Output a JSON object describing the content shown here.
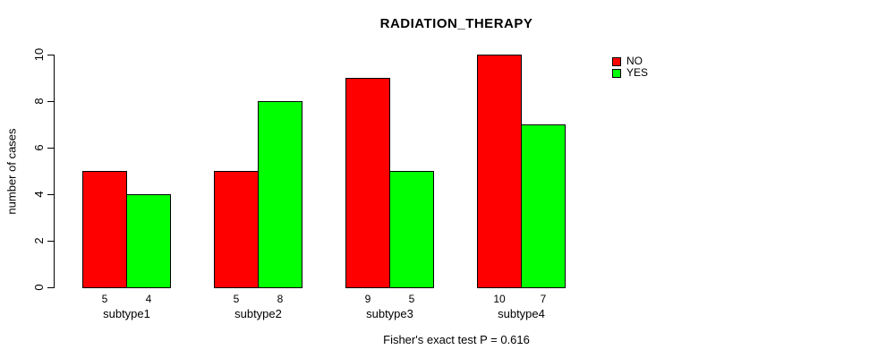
{
  "chart_data": {
    "type": "bar",
    "title": "RADIATION_THERAPY",
    "ylabel": "number of cases",
    "xlabel": "",
    "annotation": "Fisher's exact test P = 0.616",
    "categories": [
      "subtype1",
      "subtype2",
      "subtype3",
      "subtype4"
    ],
    "series": [
      {
        "name": "NO",
        "color": "#FF0000",
        "values": [
          5,
          5,
          9,
          10
        ]
      },
      {
        "name": "YES",
        "color": "#00FF00",
        "values": [
          4,
          8,
          5,
          7
        ]
      }
    ],
    "bar_value_labels": [
      [
        "5",
        "4"
      ],
      [
        "5",
        "8"
      ],
      [
        "9",
        "5"
      ],
      [
        "10",
        "7"
      ]
    ],
    "yticks": [
      0,
      2,
      4,
      6,
      8,
      10
    ],
    "ylim": [
      0,
      10
    ],
    "grid": false,
    "legend_position": "top-right",
    "background_color": "#FFFFFF",
    "axis_color": "#000000"
  },
  "legend": {
    "items": [
      {
        "label": "NO",
        "color": "#FF0000"
      },
      {
        "label": "YES",
        "color": "#00FF00"
      }
    ]
  }
}
